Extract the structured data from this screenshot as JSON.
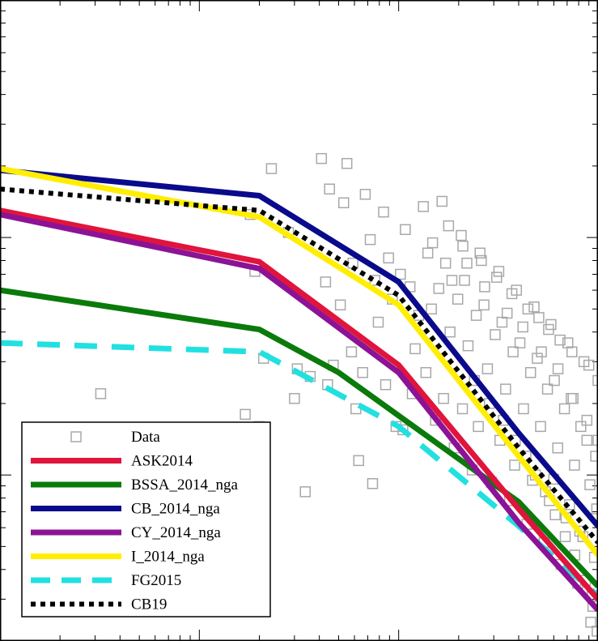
{
  "chart_data": {
    "type": "line",
    "xscale": "log",
    "yscale": "log",
    "legend_position": "bottom-left",
    "grid": false,
    "series": [
      {
        "name": "ASK2014",
        "color": "#e0143c",
        "style": "solid",
        "points": [
          [
            0.1,
            1.3
          ],
          [
            2.0,
            0.79
          ],
          [
            10,
            0.29
          ],
          [
            40,
            0.072
          ],
          [
            100,
            0.03
          ]
        ]
      },
      {
        "name": "BSSA_2014_nga",
        "color": "#0a7a0a",
        "style": "solid",
        "points": [
          [
            0.1,
            0.6
          ],
          [
            2.0,
            0.41
          ],
          [
            5,
            0.27
          ],
          [
            40,
            0.077
          ],
          [
            100,
            0.034
          ]
        ]
      },
      {
        "name": "CB_2014_nga",
        "color": "#0a0a8c",
        "style": "solid",
        "points": [
          [
            0.1,
            1.92
          ],
          [
            2.0,
            1.5
          ],
          [
            10,
            0.65
          ],
          [
            40,
            0.15
          ],
          [
            100,
            0.061
          ]
        ]
      },
      {
        "name": "CY_2014_nga",
        "color": "#8c1296",
        "style": "solid",
        "points": [
          [
            0.1,
            1.25
          ],
          [
            2.0,
            0.74
          ],
          [
            10,
            0.27
          ],
          [
            40,
            0.063
          ],
          [
            100,
            0.027
          ]
        ]
      },
      {
        "name": "I_2014_nga",
        "color": "#ffee00",
        "style": "solid",
        "points": [
          [
            0.1,
            1.95
          ],
          [
            2.0,
            1.22
          ],
          [
            10,
            0.52
          ],
          [
            40,
            0.12
          ],
          [
            100,
            0.046
          ]
        ]
      },
      {
        "name": "FG2015",
        "color": "#22e0e0",
        "style": "dashed",
        "points": [
          [
            0.1,
            0.36
          ],
          [
            2.0,
            0.33
          ],
          [
            10,
            0.16
          ],
          [
            40,
            0.061
          ],
          [
            100,
            0.031
          ]
        ]
      },
      {
        "name": "CB19",
        "color": "#000000",
        "style": "dotted",
        "points": [
          [
            0.1,
            1.6
          ],
          [
            2.0,
            1.3
          ],
          [
            10,
            0.57
          ],
          [
            40,
            0.13
          ],
          [
            100,
            0.052
          ]
        ]
      }
    ],
    "data_series": {
      "name": "Data",
      "marker": "open-square",
      "color": "#a8a8a8",
      "points": [
        [
          0.32,
          0.22
        ],
        [
          1.8,
          1.25
        ],
        [
          1.9,
          0.72
        ],
        [
          2.1,
          0.31
        ],
        [
          1.7,
          0.18
        ],
        [
          2.0,
          0.16
        ],
        [
          2.3,
          1.95
        ],
        [
          2.8,
          1.05
        ],
        [
          3.1,
          0.28
        ],
        [
          3.4,
          0.085
        ],
        [
          3.6,
          0.26
        ],
        [
          3.0,
          0.21
        ],
        [
          4.1,
          2.15
        ],
        [
          4.5,
          1.6
        ],
        [
          4.3,
          0.65
        ],
        [
          4.7,
          0.29
        ],
        [
          4.4,
          0.24
        ],
        [
          5.1,
          0.52
        ],
        [
          5.5,
          2.05
        ],
        [
          5.3,
          1.4
        ],
        [
          5.9,
          0.78
        ],
        [
          6.3,
          0.115
        ],
        [
          6.1,
          0.19
        ],
        [
          5.8,
          0.33
        ],
        [
          6.8,
          1.52
        ],
        [
          7.2,
          0.98
        ],
        [
          7.6,
          0.66
        ],
        [
          6.6,
          0.27
        ],
        [
          7.4,
          0.092
        ],
        [
          7.9,
          0.44
        ],
        [
          8.4,
          1.28
        ],
        [
          8.9,
          0.82
        ],
        [
          9.3,
          0.55
        ],
        [
          8.6,
          0.24
        ],
        [
          9.7,
          0.16
        ],
        [
          10.2,
          0.7
        ],
        [
          10.8,
          1.08
        ],
        [
          11.4,
          0.62
        ],
        [
          12.1,
          0.34
        ],
        [
          10.5,
          0.155
        ],
        [
          11.7,
          0.22
        ],
        [
          12.6,
          0.47
        ],
        [
          13.3,
          1.35
        ],
        [
          14.0,
          0.86
        ],
        [
          14.6,
          0.5
        ],
        [
          13.7,
          0.27
        ],
        [
          15.3,
          0.17
        ],
        [
          15.9,
          0.61
        ],
        [
          16.5,
          1.42
        ],
        [
          17.2,
          0.78
        ],
        [
          18.1,
          0.4
        ],
        [
          16.8,
          0.21
        ],
        [
          19.0,
          0.13
        ],
        [
          19.8,
          0.55
        ],
        [
          20.6,
          1.02
        ],
        [
          21.4,
          0.66
        ],
        [
          22.3,
          0.35
        ],
        [
          20.9,
          0.19
        ],
        [
          23.4,
          0.105
        ],
        [
          24.5,
          0.47
        ],
        [
          25.6,
          0.86
        ],
        [
          26.8,
          0.52
        ],
        [
          27.9,
          0.28
        ],
        [
          25.1,
          0.16
        ],
        [
          29.2,
          0.093
        ],
        [
          30.5,
          0.39
        ],
        [
          31.8,
          0.72
        ],
        [
          33.0,
          0.44
        ],
        [
          34.4,
          0.23
        ],
        [
          32.2,
          0.14
        ],
        [
          36.0,
          0.078
        ],
        [
          37.5,
          0.33
        ],
        [
          39.0,
          0.6
        ],
        [
          40.6,
          0.36
        ],
        [
          42.3,
          0.19
        ],
        [
          38.2,
          0.11
        ],
        [
          44.0,
          0.062
        ],
        [
          45.9,
          0.27
        ],
        [
          47.8,
          0.51
        ],
        [
          49.6,
          0.31
        ],
        [
          51.5,
          0.16
        ],
        [
          46.9,
          0.095
        ],
        [
          53.6,
          0.052
        ],
        [
          55.8,
          0.23
        ],
        [
          58.1,
          0.43
        ],
        [
          60.4,
          0.25
        ],
        [
          62.8,
          0.13
        ],
        [
          57.0,
          0.078
        ],
        [
          65.3,
          0.042
        ],
        [
          67.9,
          0.19
        ],
        [
          70.6,
          0.36
        ],
        [
          73.4,
          0.21
        ],
        [
          76.2,
          0.11
        ],
        [
          69.1,
          0.066
        ],
        [
          79.1,
          0.035
        ],
        [
          82.0,
          0.16
        ],
        [
          85.0,
          0.3
        ],
        [
          88.0,
          0.17
        ],
        [
          91.1,
          0.091
        ],
        [
          84.0,
          0.055
        ],
        [
          94.2,
          0.028
        ],
        [
          97.4,
          0.12
        ],
        [
          100.0,
          0.25
        ],
        [
          100.0,
          0.14
        ],
        [
          98.5,
          0.072
        ],
        [
          96.0,
          0.045
        ],
        [
          99.0,
          0.022
        ],
        [
          92.0,
          0.024
        ],
        [
          18.5,
          0.66
        ],
        [
          22.0,
          0.78
        ],
        [
          27.0,
          0.62
        ],
        [
          35.0,
          0.48
        ],
        [
          42.0,
          0.42
        ],
        [
          52.0,
          0.33
        ],
        [
          63.0,
          0.28
        ],
        [
          75.0,
          0.21
        ],
        [
          88.0,
          0.14
        ],
        [
          60.0,
          0.096
        ],
        [
          72.0,
          0.075
        ],
        [
          81.0,
          0.058
        ],
        [
          24.0,
          0.25
        ],
        [
          28.5,
          0.2
        ],
        [
          33.5,
          0.17
        ],
        [
          38.5,
          0.14
        ],
        [
          43.5,
          0.12
        ],
        [
          48.5,
          0.1
        ],
        [
          54.5,
          0.085
        ],
        [
          61.0,
          0.068
        ],
        [
          68.5,
          0.055
        ],
        [
          76.5,
          0.046
        ],
        [
          86.5,
          0.036
        ],
        [
          93.5,
          0.031
        ],
        [
          14.8,
          0.95
        ],
        [
          17.8,
          1.12
        ],
        [
          21.0,
          0.92
        ],
        [
          26.0,
          0.8
        ],
        [
          31.0,
          0.68
        ],
        [
          37.0,
          0.58
        ],
        [
          44.5,
          0.5
        ],
        [
          50.5,
          0.46
        ],
        [
          56.5,
          0.41
        ],
        [
          64.5,
          0.37
        ],
        [
          74.0,
          0.33
        ],
        [
          90.0,
          0.29
        ]
      ]
    },
    "xlim": [
      0.1,
      100
    ],
    "ylim": [
      0.02,
      10
    ]
  }
}
